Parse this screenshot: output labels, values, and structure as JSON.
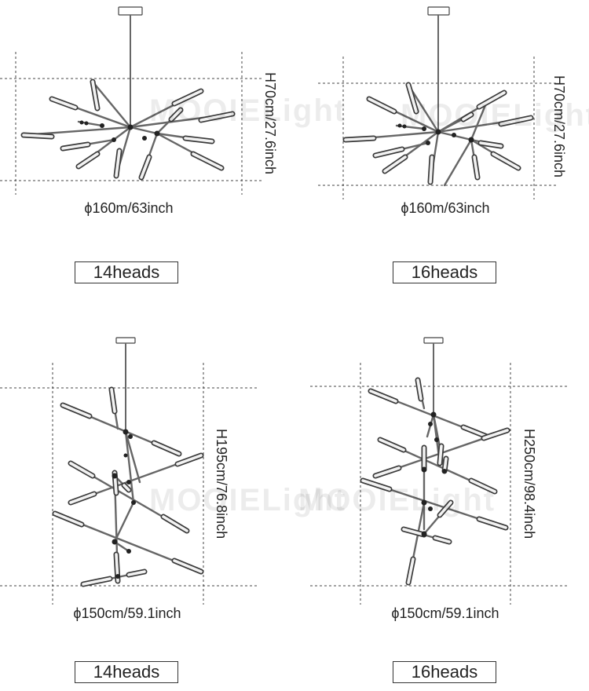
{
  "watermark": "MOOIELight",
  "panels": [
    {
      "id": "p1",
      "width_label": "ϕ160m/63inch",
      "height_label": "H70cm/27.6inch",
      "heads_label": "14heads"
    },
    {
      "id": "p2",
      "width_label": "ϕ160m/63inch",
      "height_label": "H70cm/27.6inch",
      "heads_label": "16heads"
    },
    {
      "id": "p3",
      "width_label": "ϕ150cm/59.1inch",
      "height_label": "H195cm/76.8inch",
      "heads_label": "14heads"
    },
    {
      "id": "p4",
      "width_label": "ϕ150cm/59.1inch",
      "height_label": "H250cm/98.4inch",
      "heads_label": "16heads"
    }
  ],
  "colors": {
    "line": "#444444",
    "rod": "#666666",
    "joint": "#222222"
  }
}
